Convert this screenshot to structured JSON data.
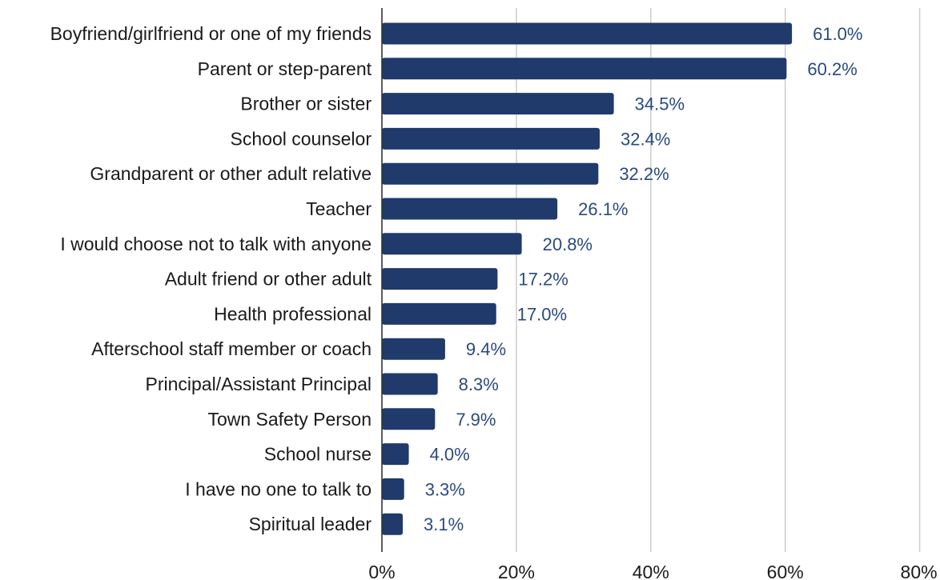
{
  "chart_data": {
    "type": "bar",
    "orientation": "horizontal",
    "categories": [
      "Boyfriend/girlfriend or one of my friends",
      "Parent or step-parent",
      "Brother or sister",
      "School counselor",
      "Grandparent or other adult relative",
      "Teacher",
      "I would choose not to talk with anyone",
      "Adult friend or other adult",
      "Health professional",
      "Afterschool staff member or coach",
      "Principal/Assistant Principal",
      "Town Safety Person",
      "School nurse",
      "I have no one to talk to",
      "Spiritual leader"
    ],
    "values": [
      61.0,
      60.2,
      34.5,
      32.4,
      32.2,
      26.1,
      20.8,
      17.2,
      17.0,
      9.4,
      8.3,
      7.9,
      4.0,
      3.3,
      3.1
    ],
    "value_labels": [
      "61.0%",
      "60.2%",
      "34.5%",
      "32.4%",
      "32.2%",
      "26.1%",
      "20.8%",
      "17.2%",
      "17.0%",
      "9.4%",
      "8.3%",
      "7.9%",
      "4.0%",
      "3.3%",
      "3.1%"
    ],
    "x_ticks": [
      0,
      20,
      40,
      60,
      80
    ],
    "x_tick_labels": [
      "0%",
      "20%",
      "40%",
      "60%",
      "80%"
    ],
    "xlim": [
      0,
      80
    ],
    "title": "",
    "xlabel": "",
    "ylabel": "",
    "grid": "vertical",
    "legend": "none",
    "colors": {
      "bar": "#1f3a6b",
      "value_label": "#2b4a7e",
      "grid": "#cfcfcf",
      "text": "#1a1a1a"
    }
  }
}
